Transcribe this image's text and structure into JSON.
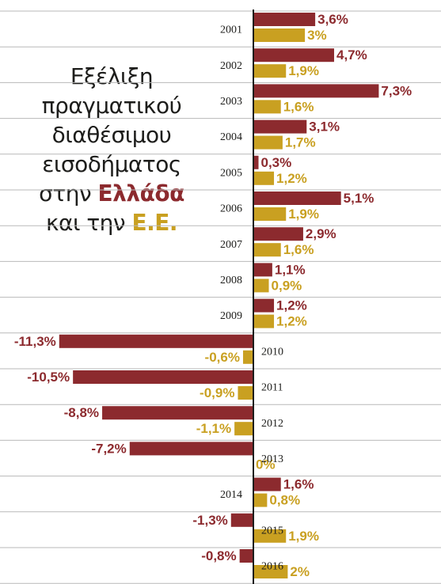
{
  "title": {
    "line1": "Εξέλιξη",
    "line2": "πραγματικού",
    "line3": "διαθέσιμου",
    "line4": "εισοδήματος",
    "line5_prefix": "στην ",
    "line5_highlight": "Ελλάδα",
    "line6_prefix": "και την ",
    "line6_highlight": "Ε.Ε."
  },
  "colors": {
    "greece": "#8c2a2e",
    "eu": "#c9a021",
    "row_divider": "#b9b9b9",
    "axis": "#1d1d1b"
  },
  "chart_data": {
    "type": "bar",
    "orientation": "horizontal",
    "categories": [
      "2001",
      "2002",
      "2003",
      "2004",
      "2005",
      "2006",
      "2007",
      "2008",
      "2009",
      "2010",
      "2011",
      "2012",
      "2013",
      "2014",
      "2015",
      "2016"
    ],
    "series": [
      {
        "key": "greece",
        "values": [
          3.6,
          4.7,
          7.3,
          3.1,
          0.3,
          5.1,
          2.9,
          1.1,
          1.2,
          -11.3,
          -10.5,
          -8.8,
          -7.2,
          1.6,
          -1.3,
          -0.8
        ],
        "labels": [
          "3,6%",
          "4,7%",
          "7,3%",
          "3,1%",
          "0,3%",
          "5,1%",
          "2,9%",
          "1,1%",
          "1,2%",
          "-11,3%",
          "-10,5%",
          "-8,8%",
          "-7,2%",
          "1,6%",
          "-1,3%",
          "-0,8%"
        ]
      },
      {
        "key": "eu",
        "values": [
          3.0,
          1.9,
          1.6,
          1.7,
          1.2,
          1.9,
          1.6,
          0.9,
          1.2,
          -0.6,
          -0.9,
          -1.1,
          0.0,
          0.8,
          1.9,
          2.0
        ],
        "labels": [
          "3%",
          "1,9%",
          "1,6%",
          "1,7%",
          "1,2%",
          "1,9%",
          "1,6%",
          "0,9%",
          "1,2%",
          "-0,6%",
          "-0,9%",
          "-1,1%",
          "0%",
          "0,8%",
          "1,9%",
          "2%"
        ]
      }
    ],
    "xlim": [
      -11.3,
      7.3
    ],
    "grid": false,
    "legend": "none"
  }
}
